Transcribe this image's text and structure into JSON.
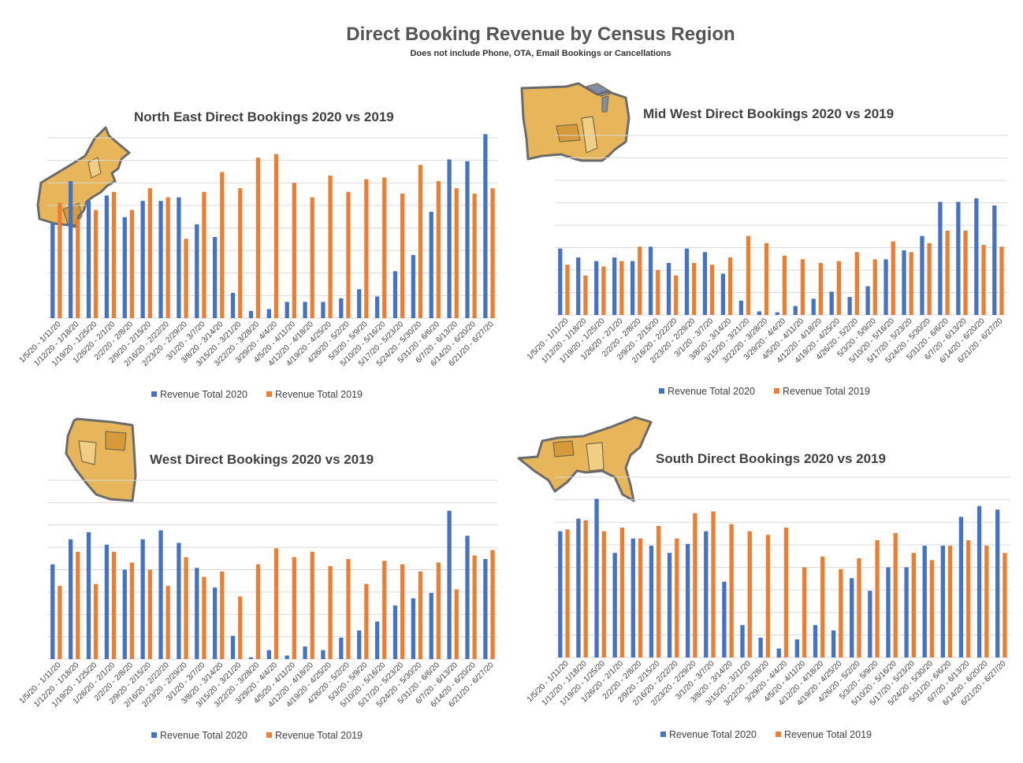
{
  "page": {
    "title": "Direct Booking Revenue by Census Region",
    "subtitle": "Does not include Phone, OTA, Email Bookings or Cancellations"
  },
  "colors": {
    "series_2020": "#4472c4",
    "series_2019": "#ed7d31",
    "map_fill": "#e8b65a",
    "map_dark": "#d69a3a"
  },
  "icons": [
    "north-east-map-icon",
    "mid-west-map-icon",
    "west-map-icon",
    "south-map-icon"
  ],
  "legend": {
    "s2020": "Revenue Total 2020",
    "s2019": "Revenue Total 2019"
  },
  "chart_data": [
    {
      "id": "north-east",
      "type": "bar",
      "title": "North East Direct Bookings 2020 vs 2019",
      "categories": [
        "1/5/20 - 1/11/20",
        "1/12/20 - 1/18/20",
        "1/19/20 - 1/25/20",
        "1/26/20 - 2/1/20",
        "2/2/20 - 2/8/20",
        "2/9/20 - 2/15/20",
        "2/16/20 - 2/22/20",
        "2/23/20 - 2/29/20",
        "3/1/20 - 3/7/20",
        "3/8/20 - 3/14/20",
        "3/15/20 - 3/21/20",
        "3/22/20 - 3/28/20",
        "3/29/20 - 4/4/20",
        "4/5/20 - 4/11/20",
        "4/12/20 - 4/18/20",
        "4/19/20 - 4/25/20",
        "4/26/20 - 5/2/20",
        "5/3/20 - 5/9/20",
        "5/10/20 - 5/16/20",
        "5/17/20 - 5/23/20",
        "5/24/20 - 5/30/20",
        "5/31/20 - 6/6/20",
        "6/7/20 - 6/13/20",
        "6/14/20 - 6/20/20",
        "6/21/20 - 6/27/20"
      ],
      "ylim": [
        0,
        10
      ],
      "grid": true,
      "legend_position": "bottom",
      "series": [
        {
          "name": "Revenue Total 2020",
          "color": "#4472c4",
          "values": [
            5.3,
            7.6,
            6.5,
            6.8,
            5.6,
            6.5,
            6.5,
            6.7,
            5.2,
            4.5,
            1.4,
            0.4,
            0.5,
            0.9,
            0.9,
            0.9,
            1.1,
            1.6,
            1.2,
            2.6,
            3.5,
            5.9,
            8.8,
            8.7,
            10.2
          ]
        },
        {
          "name": "Revenue Total 2019",
          "color": "#ed7d31",
          "values": [
            6.4,
            5.5,
            6.0,
            7.0,
            6.0,
            7.2,
            6.7,
            4.4,
            7.0,
            8.1,
            7.2,
            8.9,
            9.1,
            7.5,
            6.7,
            7.9,
            7.0,
            7.7,
            7.8,
            6.9,
            8.5,
            7.6,
            7.2,
            6.9,
            7.2
          ]
        }
      ]
    },
    {
      "id": "mid-west",
      "type": "bar",
      "title": "Mid West Direct Bookings 2020 vs 2019",
      "categories": [
        "1/5/20 - 1/11/20",
        "1/12/20 - 1/18/20",
        "1/19/20 - 1/25/20",
        "1/26/20 - 2/1/20",
        "2/2/20 - 2/8/20",
        "2/9/20 - 2/15/20",
        "2/16/20 - 2/22/20",
        "2/23/20 - 2/29/20",
        "3/1/20 - 3/7/20",
        "3/8/20 - 3/14/20",
        "3/15/20 - 3/21/20",
        "3/22/20 - 3/28/20",
        "3/29/20 - 4/4/20",
        "4/5/20 - 4/11/20",
        "4/12/20 - 4/18/20",
        "4/19/20 - 4/25/20",
        "4/26/20 - 5/2/20",
        "5/3/20 - 5/9/20",
        "5/10/20 - 5/16/20",
        "5/17/20 - 5/23/20",
        "5/24/20 - 5/30/20",
        "5/31/20 - 6/6/20",
        "6/7/20 - 6/13/20",
        "6/14/20 - 6/20/20",
        "6/21/20 - 6/27/20"
      ],
      "ylim": [
        0,
        10
      ],
      "grid": true,
      "legend_position": "bottom",
      "series": [
        {
          "name": "Revenue Total 2020",
          "color": "#4472c4",
          "values": [
            3.7,
            3.2,
            3.0,
            3.2,
            3.0,
            3.8,
            2.9,
            3.7,
            3.5,
            2.3,
            0.8,
            0.2,
            0.15,
            0.5,
            0.9,
            1.3,
            1.0,
            1.6,
            3.1,
            3.6,
            4.4,
            6.3,
            6.3,
            6.5,
            6.1
          ]
        },
        {
          "name": "Revenue Total 2019",
          "color": "#ed7d31",
          "values": [
            2.8,
            2.2,
            2.7,
            3.0,
            3.8,
            2.5,
            2.2,
            2.9,
            2.8,
            3.2,
            4.4,
            4.0,
            3.3,
            3.1,
            2.9,
            3.0,
            3.5,
            3.1,
            4.1,
            3.5,
            4.0,
            4.7,
            4.7,
            3.9,
            3.8
          ]
        }
      ]
    },
    {
      "id": "west",
      "type": "bar",
      "title": "West Direct Bookings 2020 vs 2019",
      "categories": [
        "1/5/20 - 1/11/20",
        "1/12/20 - 1/18/20",
        "1/19/20 - 1/25/20",
        "1/26/20 - 2/1/20",
        "2/2/20 - 2/8/20",
        "2/9/20 - 2/15/20",
        "2/16/20 - 2/22/20",
        "2/23/20 - 2/29/20",
        "3/1/20 - 3/7/20",
        "3/8/20 - 3/14/20",
        "3/15/20 - 3/21/20",
        "3/22/20 - 3/28/20",
        "3/29/20 - 4/4/20",
        "4/5/20 - 4/11/20",
        "4/12/20 - 4/18/20",
        "4/19/20 - 4/25/20",
        "4/26/20 - 5/2/20",
        "5/3/20 - 5/9/20",
        "5/10/20 - 5/16/20",
        "5/17/20 - 5/23/20",
        "5/24/20 - 5/30/20",
        "5/31/20 - 6/6/20",
        "6/7/20 - 6/13/20",
        "6/14/20 - 6/20/20",
        "6/21/20 - 6/27/20"
      ],
      "ylim": [
        0,
        10
      ],
      "grid": true,
      "legend_position": "bottom",
      "series": [
        {
          "name": "Revenue Total 2020",
          "color": "#4472c4",
          "values": [
            5.3,
            6.7,
            7.1,
            6.4,
            5.0,
            6.7,
            7.2,
            6.5,
            5.1,
            4.0,
            1.3,
            0.1,
            0.5,
            0.2,
            0.7,
            0.5,
            1.2,
            1.6,
            2.1,
            3.0,
            3.4,
            3.7,
            8.3,
            6.9,
            5.6
          ]
        },
        {
          "name": "Revenue Total 2019",
          "color": "#ed7d31",
          "values": [
            4.1,
            6.0,
            4.2,
            6.0,
            5.4,
            5.0,
            4.1,
            5.7,
            4.6,
            4.9,
            3.5,
            5.3,
            6.2,
            5.7,
            6.0,
            5.2,
            5.6,
            4.2,
            5.5,
            5.3,
            4.9,
            5.4,
            3.9,
            5.8,
            6.1
          ]
        }
      ]
    },
    {
      "id": "south",
      "type": "bar",
      "title": "South Direct Bookings 2020 vs 2019",
      "categories": [
        "1/5/20 - 1/11/20",
        "1/12/20 - 1/18/20",
        "1/19/20 - 1/25/20",
        "1/26/20 - 2/1/20",
        "2/2/20 - 2/8/20",
        "2/9/20 - 2/15/20",
        "2/16/20 - 2/22/20",
        "2/23/20 - 2/29/20",
        "3/1/20 - 3/7/20",
        "3/8/20 - 3/14/20",
        "3/15/20 - 3/21/20",
        "3/22/20 - 3/28/20",
        "3/29/20 - 4/4/20",
        "4/5/20 - 4/11/20",
        "4/12/20 - 4/18/20",
        "4/19/20 - 4/25/20",
        "4/26/20 - 5/2/20",
        "5/3/20 - 5/9/20",
        "5/10/20 - 5/16/20",
        "5/17/20 - 5/23/20",
        "5/24/20 - 5/30/20",
        "5/31/20 - 6/6/20",
        "6/7/20 - 6/13/20",
        "6/14/20 - 6/20/20",
        "6/21/20 - 6/27/20"
      ],
      "ylim": [
        0,
        10
      ],
      "grid": true,
      "legend_position": "bottom",
      "series": [
        {
          "name": "Revenue Total 2020",
          "color": "#4472c4",
          "values": [
            7.0,
            7.7,
            8.8,
            5.8,
            6.6,
            6.2,
            5.8,
            6.3,
            7.0,
            4.2,
            1.8,
            1.1,
            0.5,
            1.0,
            1.8,
            1.5,
            4.4,
            3.7,
            5.0,
            5.0,
            6.2,
            6.2,
            7.8,
            8.4,
            8.2
          ]
        },
        {
          "name": "Revenue Total 2019",
          "color": "#ed7d31",
          "values": [
            7.1,
            7.6,
            7.0,
            7.2,
            6.6,
            7.3,
            6.6,
            8.0,
            8.1,
            7.4,
            7.0,
            6.8,
            7.2,
            5.0,
            5.6,
            4.9,
            5.5,
            6.5,
            6.9,
            5.8,
            5.4,
            6.2,
            6.5,
            6.2,
            5.8
          ]
        }
      ]
    }
  ]
}
